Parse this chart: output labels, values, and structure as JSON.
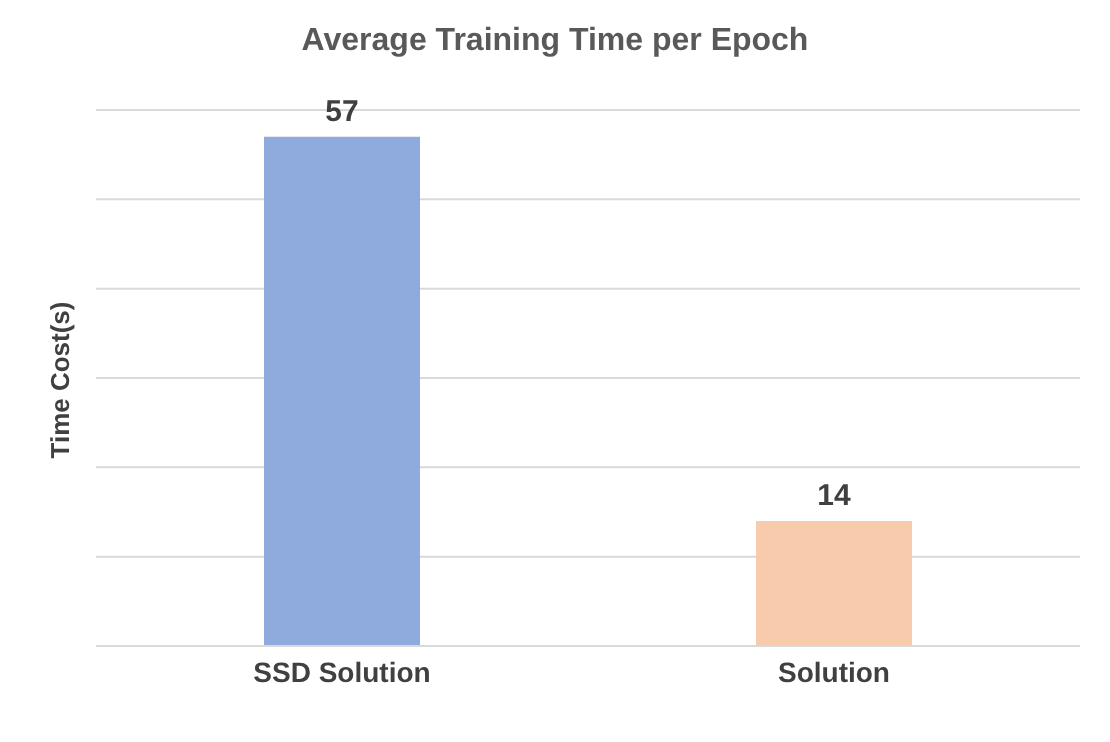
{
  "chart_data": {
    "type": "bar",
    "title": "Average Training Time per Epoch",
    "ylabel": "Time Cost(s)",
    "categories": [
      "SSD Solution",
      "Solution"
    ],
    "values": [
      57,
      14
    ],
    "colors": [
      "#8faadc",
      "#f8cbad"
    ],
    "ylim": [
      0,
      60
    ],
    "yticks": [
      {
        "value": 0,
        "label": null
      },
      {
        "value": 10,
        "label": null
      },
      {
        "value": 20,
        "label": null
      },
      {
        "value": 30,
        "label": null
      },
      {
        "value": 40,
        "label": null
      },
      {
        "value": 50,
        "label": null
      },
      {
        "value": 60,
        "label": null
      }
    ],
    "grid": "y",
    "tick_labels": "x",
    "data_labels": true
  }
}
